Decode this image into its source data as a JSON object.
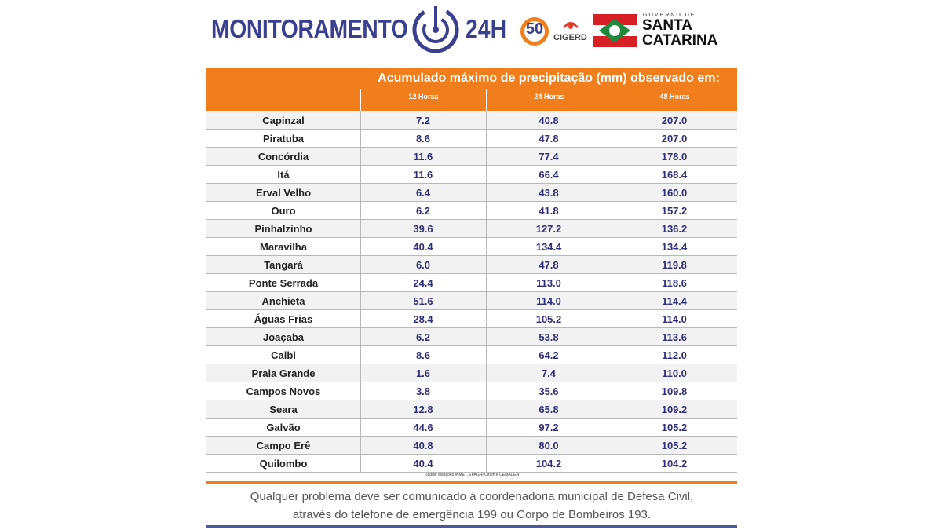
{
  "header": {
    "title": "MONITORAMENTO",
    "title_suffix": "24H",
    "badge": "50",
    "org": "CIGERD",
    "gov_small": "GOVERNO DE",
    "gov_state_1": "SANTA",
    "gov_state_2": "CATARINA"
  },
  "table": {
    "title": "Acumulado máximo de precipitação (mm) observado em:",
    "columns": [
      "12 Horas",
      "24 Horas",
      "48 Horas"
    ],
    "rows": [
      [
        "Capinzal",
        "7.2",
        "40.8",
        "207.0"
      ],
      [
        "Piratuba",
        "8.6",
        "47.8",
        "207.0"
      ],
      [
        "Concórdia",
        "11.6",
        "77.4",
        "178.0"
      ],
      [
        "Itá",
        "11.6",
        "66.4",
        "168.4"
      ],
      [
        "Erval Velho",
        "6.4",
        "43.8",
        "160.0"
      ],
      [
        "Ouro",
        "6.2",
        "41.8",
        "157.2"
      ],
      [
        "Pinhalzinho",
        "39.6",
        "127.2",
        "136.2"
      ],
      [
        "Maravilha",
        "40.4",
        "134.4",
        "134.4"
      ],
      [
        "Tangará",
        "6.0",
        "47.8",
        "119.8"
      ],
      [
        "Ponte Serrada",
        "24.4",
        "113.0",
        "118.6"
      ],
      [
        "Anchieta",
        "51.6",
        "114.0",
        "114.4"
      ],
      [
        "Águas Frias",
        "28.4",
        "105.2",
        "114.0"
      ],
      [
        "Joaçaba",
        "6.2",
        "53.8",
        "113.6"
      ],
      [
        "Caibi",
        "8.6",
        "64.2",
        "112.0"
      ],
      [
        "Praia Grande",
        "1.6",
        "7.4",
        "110.0"
      ],
      [
        "Campos Novos",
        "3.8",
        "35.6",
        "109.8"
      ],
      [
        "Seara",
        "12.8",
        "65.8",
        "109.2"
      ],
      [
        "Galvão",
        "44.6",
        "97.2",
        "105.2"
      ],
      [
        "Campo Erê",
        "40.8",
        "80.0",
        "105.2"
      ],
      [
        "Quilombo",
        "40.4",
        "104.2",
        "104.2"
      ]
    ]
  },
  "source": "Dados: estações INMET, EPAGRI/Ciram e CEMADEN",
  "footer": [
    "Qualquer problema deve ser comunicado à coordenadoria municipal de Defesa Civil,",
    "através do telefone de emergência 199 ou Corpo de Bombeiros 193."
  ]
}
